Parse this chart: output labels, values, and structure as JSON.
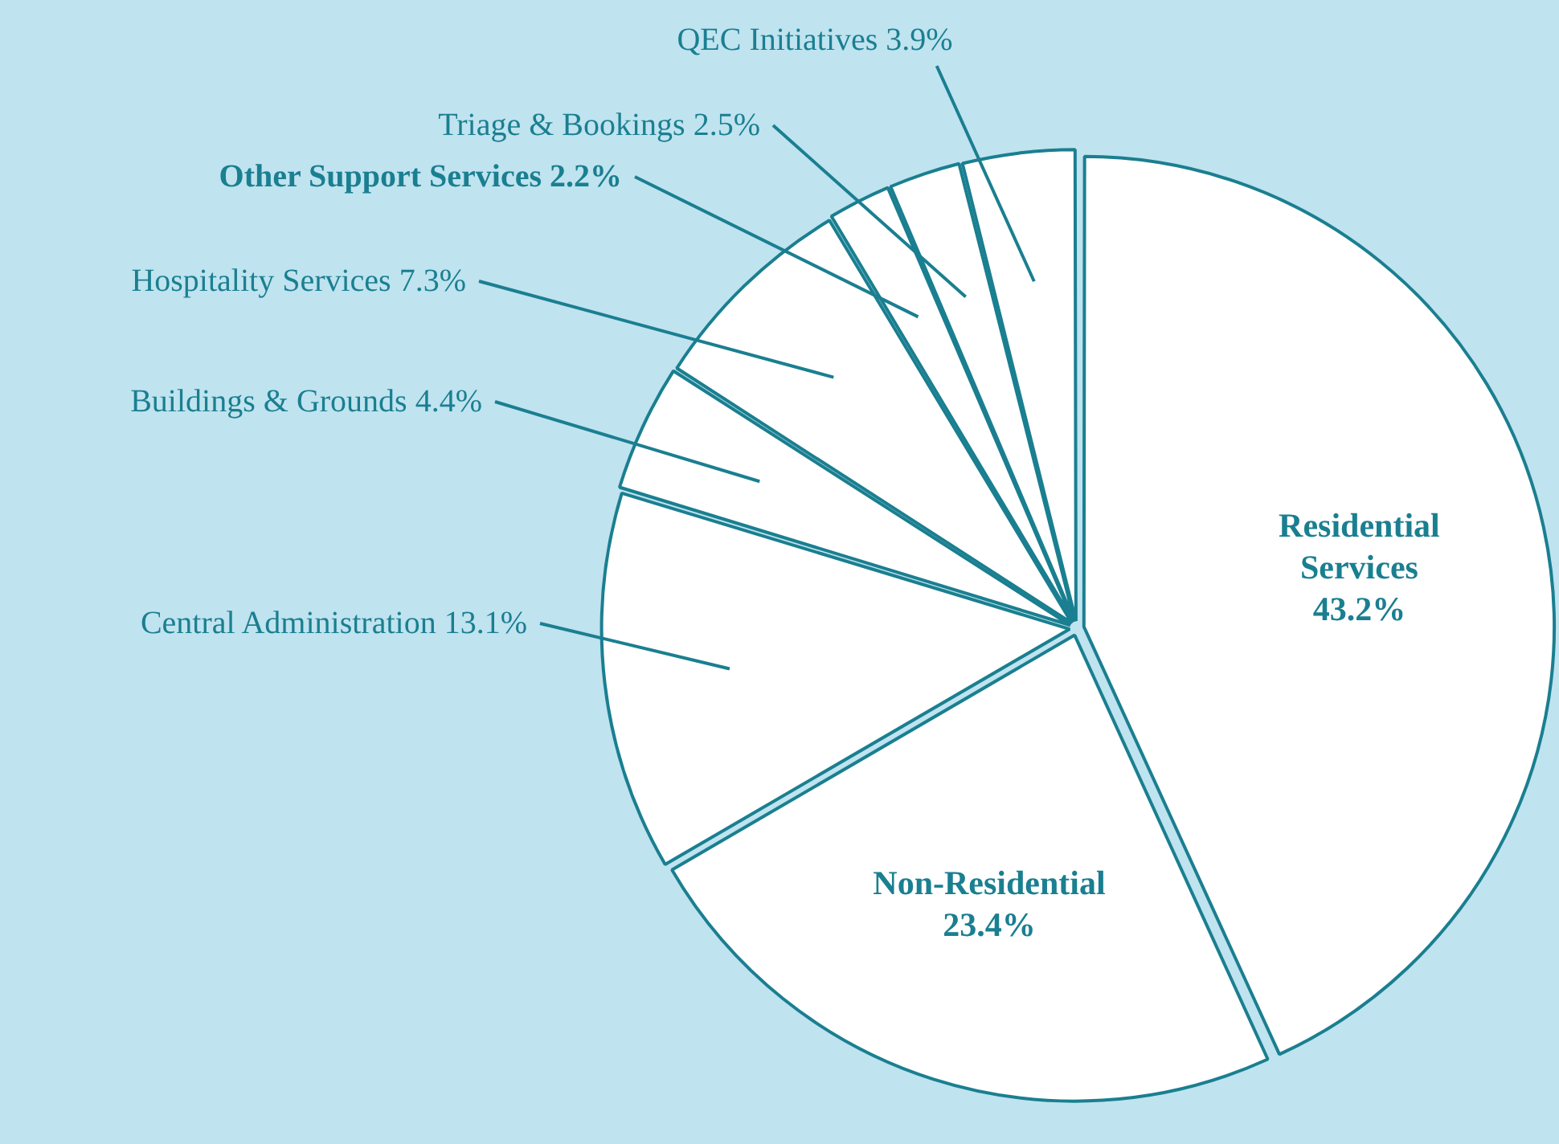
{
  "chart_data": {
    "type": "pie",
    "categories": [
      "Residential Services",
      "Non-Residential",
      "Central Administration",
      "Buildings & Grounds",
      "Hospitality Services",
      "Other Support Services",
      "Triage & Bookings",
      "QEC Initiatives"
    ],
    "values": [
      43.2,
      23.4,
      13.1,
      4.4,
      7.3,
      2.2,
      2.5,
      3.9
    ],
    "value_labels": [
      "43.2%",
      "23.4%",
      "13.1%",
      "4.4%",
      "7.3%",
      "2.2%",
      "2.5%",
      "3.9%"
    ],
    "colors": [
      "#ffffff",
      "#ffffff",
      "#ffffff",
      "#ffffff",
      "#ffffff",
      "#ffffff",
      "#ffffff",
      "#ffffff"
    ],
    "legend": false
  }
}
